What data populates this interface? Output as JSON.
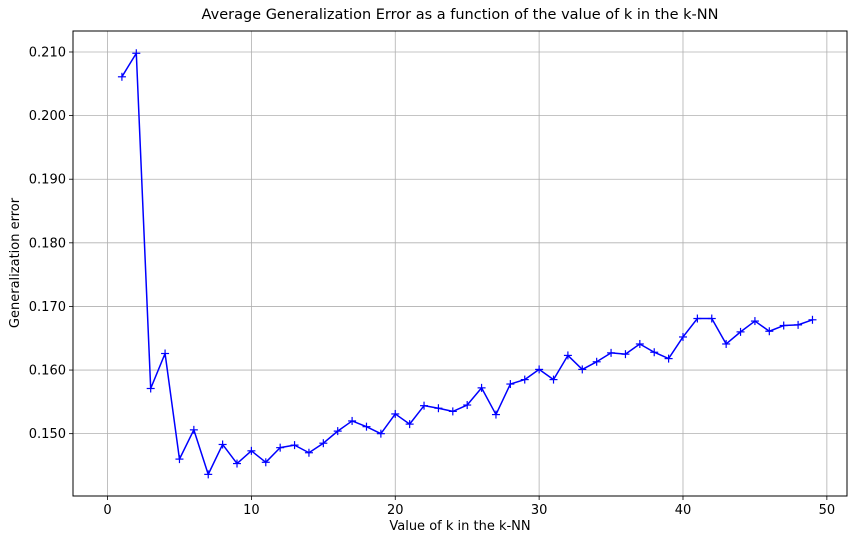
{
  "chart_data": {
    "type": "line",
    "title": "Average Generalization Error as a function of the value of k in the k-NN",
    "xlabel": "Value of k in the k-NN",
    "ylabel": "Generalization error",
    "xlim": [
      -2.4,
      51.4
    ],
    "ylim": [
      0.1402,
      0.2133
    ],
    "xticks": [
      0,
      10,
      20,
      30,
      40,
      50
    ],
    "xtick_labels": [
      "0",
      "10",
      "20",
      "30",
      "40",
      "50"
    ],
    "yticks": [
      0.15,
      0.16,
      0.17,
      0.18,
      0.19,
      0.2,
      0.21
    ],
    "ytick_labels": [
      "0.150",
      "0.160",
      "0.170",
      "0.180",
      "0.190",
      "0.200",
      "0.210"
    ],
    "grid": true,
    "series": [
      {
        "color": "#0000ff",
        "marker": "+",
        "x": [
          1,
          2,
          3,
          4,
          5,
          6,
          7,
          8,
          9,
          10,
          11,
          12,
          13,
          14,
          15,
          16,
          17,
          18,
          19,
          20,
          21,
          22,
          23,
          24,
          25,
          26,
          27,
          28,
          29,
          30,
          31,
          32,
          33,
          34,
          35,
          36,
          37,
          38,
          39,
          40,
          41,
          42,
          43,
          44,
          45,
          46,
          47,
          48,
          49
        ],
        "y": [
          0.2061,
          0.2098,
          0.1571,
          0.1626,
          0.146,
          0.1506,
          0.1436,
          0.1483,
          0.1453,
          0.1473,
          0.1455,
          0.1478,
          0.1482,
          0.147,
          0.1485,
          0.1504,
          0.152,
          0.1511,
          0.15,
          0.1531,
          0.1515,
          0.1544,
          0.154,
          0.1535,
          0.1545,
          0.1572,
          0.153,
          0.1578,
          0.1585,
          0.1601,
          0.1585,
          0.1623,
          0.1601,
          0.1613,
          0.1627,
          0.1625,
          0.1641,
          0.1628,
          0.1618,
          0.1652,
          0.1681,
          0.1681,
          0.1641,
          0.166,
          0.1677,
          0.1661,
          0.167,
          0.1671,
          0.1679
        ]
      }
    ]
  }
}
